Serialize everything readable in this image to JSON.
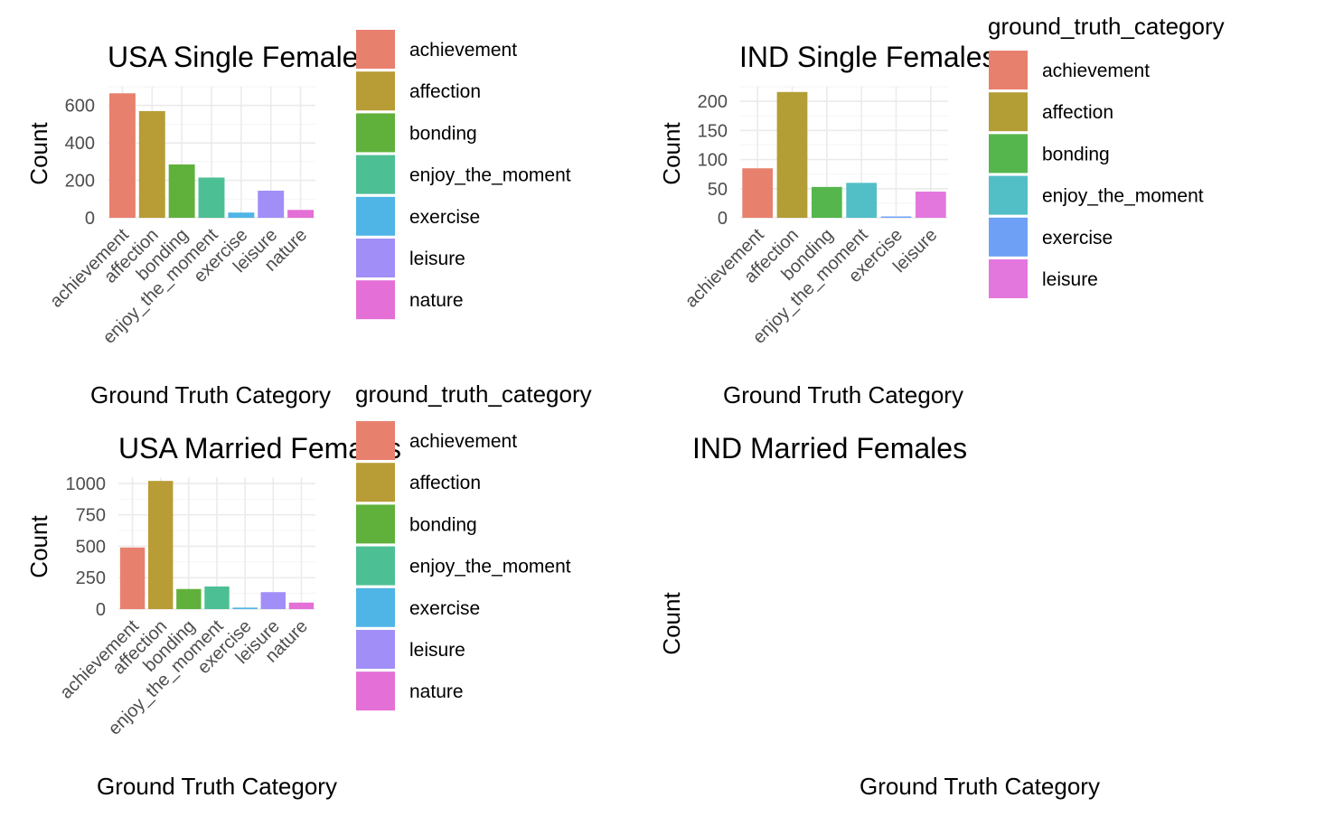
{
  "colors": {
    "achievement": "#E8806E",
    "affection": "#B89C35",
    "bonding": "#60B13C",
    "enjoy_the_moment": "#4DBF94",
    "exercise": "#4FB5E6",
    "leisure": "#A28EF7",
    "nature": "#E46FD6",
    "ind_achievement": "#E8806E",
    "ind_affection": "#B39E35",
    "ind_bonding": "#55B64D",
    "ind_enjoy_the_moment": "#52BEC6",
    "ind_exercise": "#6EA1F5",
    "ind_leisure": "#E377DE"
  },
  "chart_data": [
    {
      "type": "bar",
      "title": "USA Single Females",
      "xlabel": "Ground Truth Category",
      "ylabel": "Count",
      "categories": [
        "achievement",
        "affection",
        "bonding",
        "enjoy_the_moment",
        "exercise",
        "leisure",
        "nature"
      ],
      "values": [
        665,
        570,
        285,
        215,
        28,
        145,
        42
      ],
      "ylim": [
        0,
        700
      ],
      "yticks": [
        0,
        200,
        400,
        600
      ],
      "grid": true,
      "legend": {
        "title": "ground_truth_category",
        "entries": [
          "achievement",
          "affection",
          "bonding",
          "enjoy_the_moment",
          "exercise",
          "leisure",
          "nature"
        ]
      }
    },
    {
      "type": "bar",
      "title": "IND Single Females",
      "xlabel": "Ground Truth Category",
      "ylabel": "Count",
      "categories": [
        "achievement",
        "affection",
        "bonding",
        "enjoy_the_moment",
        "exercise",
        "leisure"
      ],
      "values": [
        85,
        216,
        53,
        60,
        2,
        45
      ],
      "ylim": [
        0,
        225
      ],
      "yticks": [
        0,
        50,
        100,
        150,
        200
      ],
      "grid": true,
      "legend": {
        "title": "ground_truth_category",
        "entries": [
          "achievement",
          "affection",
          "bonding",
          "enjoy_the_moment",
          "exercise",
          "leisure"
        ]
      }
    },
    {
      "type": "bar",
      "title": "USA Married Females",
      "xlabel": "Ground Truth Category",
      "ylabel": "Count",
      "categories": [
        "achievement",
        "affection",
        "bonding",
        "enjoy_the_moment",
        "exercise",
        "leisure",
        "nature"
      ],
      "values": [
        490,
        1020,
        160,
        180,
        12,
        135,
        52
      ],
      "ylim": [
        0,
        1050
      ],
      "yticks": [
        0,
        250,
        500,
        750,
        1000
      ],
      "grid": true,
      "legend": {
        "title": "ground_truth_category",
        "entries": [
          "achievement",
          "affection",
          "bonding",
          "enjoy_the_moment",
          "exercise",
          "leisure",
          "nature"
        ]
      }
    },
    {
      "type": "bar",
      "title": "IND Married Females",
      "xlabel": "Ground Truth Category",
      "ylabel": "Count",
      "categories": [],
      "values": [],
      "grid": false
    }
  ]
}
